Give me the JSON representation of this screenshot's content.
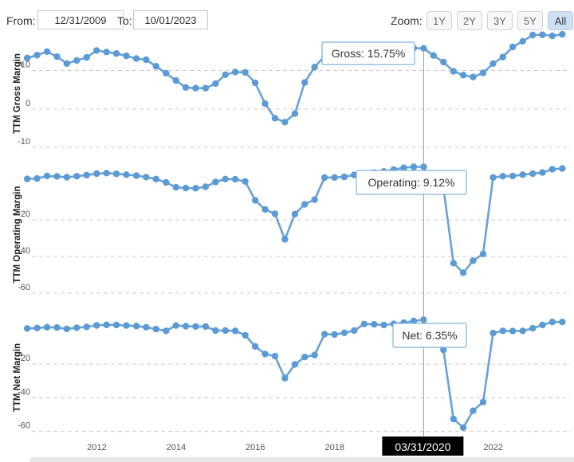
{
  "toolbar": {
    "from_label": "From:",
    "from_value": "12/31/2009",
    "to_label": "To:",
    "to_value": "10/01/2023",
    "zoom_label": "Zoom:",
    "zoom_buttons": [
      "1Y",
      "2Y",
      "3Y",
      "5Y",
      "All"
    ],
    "active_zoom": "All"
  },
  "colors": {
    "line": "#5b9bd5",
    "line_stroke": "#6aa1d6",
    "grid": "#cccccc",
    "crosshair": "#999999",
    "xhair_label_bg": "#000000"
  },
  "crosshair": {
    "date_label": "03/31/2020"
  },
  "chart_data": [
    {
      "type": "line",
      "ylabel": "TTM Gross Margin",
      "yticks": [
        10,
        0,
        -10
      ],
      "ylim": [
        -11,
        19
      ],
      "tooltip": {
        "text": "Gross: 15.75%"
      },
      "series": [
        {
          "x": [
            "2010-03-31",
            "2010-06-30",
            "2010-09-30",
            "2010-12-31",
            "2011-03-31",
            "2011-06-30",
            "2011-09-30",
            "2011-12-31",
            "2012-03-31",
            "2012-06-30",
            "2012-09-30",
            "2012-12-31",
            "2013-03-31",
            "2013-06-30",
            "2013-09-30",
            "2013-12-31",
            "2014-03-31",
            "2014-06-30",
            "2014-09-30",
            "2014-12-31",
            "2015-03-31",
            "2015-06-30",
            "2015-09-30",
            "2015-12-31",
            "2016-03-31",
            "2016-06-30",
            "2016-09-30",
            "2016-12-31",
            "2017-03-31",
            "2017-06-30",
            "2017-09-30",
            "2017-12-31",
            "2018-03-31",
            "2018-06-30",
            "2018-09-30",
            "2018-12-31",
            "2019-03-31",
            "2019-06-30",
            "2019-09-30",
            "2019-12-31",
            "2020-03-31",
            "2020-06-30",
            "2020-09-30",
            "2020-12-31",
            "2021-03-31",
            "2021-06-30",
            "2021-09-30",
            "2021-12-31",
            "2022-03-31",
            "2022-06-30",
            "2022-09-30",
            "2022-12-31",
            "2023-03-31",
            "2023-06-30",
            "2023-09-30"
          ],
          "values": [
            13.2,
            14.0,
            14.9,
            13.6,
            11.8,
            12.6,
            13.4,
            15.2,
            14.8,
            14.4,
            13.8,
            13.1,
            12.8,
            11.1,
            9.3,
            7.4,
            5.6,
            5.4,
            5.4,
            6.6,
            8.9,
            9.6,
            9.5,
            6.8,
            1.4,
            -2.4,
            -3.4,
            -1.2,
            6.9,
            10.9,
            13.7,
            14.6,
            15.2,
            15.6,
            15.8,
            15.8,
            15.9,
            15.8,
            15.8,
            15.8,
            15.75,
            13.9,
            12.2,
            9.8,
            8.8,
            8.3,
            9.4,
            11.8,
            13.5,
            16.1,
            17.6,
            19.2,
            19.3,
            19.0,
            19.4
          ]
        }
      ]
    },
    {
      "type": "line",
      "ylabel": "TTM Operating Margin",
      "yticks": [
        -20,
        -40,
        -60
      ],
      "ylim": [
        -64,
        8
      ],
      "tooltip": {
        "text": "Operating: 9.12%"
      },
      "series": [
        {
          "x": [
            "2010-03-31",
            "2010-06-30",
            "2010-09-30",
            "2010-12-31",
            "2011-03-31",
            "2011-06-30",
            "2011-09-30",
            "2011-12-31",
            "2012-03-31",
            "2012-06-30",
            "2012-09-30",
            "2012-12-31",
            "2013-03-31",
            "2013-06-30",
            "2013-09-30",
            "2013-12-31",
            "2014-03-31",
            "2014-06-30",
            "2014-09-30",
            "2014-12-31",
            "2015-03-31",
            "2015-06-30",
            "2015-09-30",
            "2015-12-31",
            "2016-03-31",
            "2016-06-30",
            "2016-09-30",
            "2016-12-31",
            "2017-03-31",
            "2017-06-30",
            "2017-09-30",
            "2017-12-31",
            "2018-03-31",
            "2018-06-30",
            "2018-09-30",
            "2018-12-31",
            "2019-03-31",
            "2019-06-30",
            "2019-09-30",
            "2019-12-31",
            "2020-03-31",
            "2020-06-30",
            "2020-09-30",
            "2020-12-31",
            "2021-03-31",
            "2021-06-30",
            "2021-09-30",
            "2021-12-31",
            "2022-03-31",
            "2022-06-30",
            "2022-09-30",
            "2022-12-31",
            "2023-03-31",
            "2023-06-30",
            "2023-09-30"
          ],
          "values": [
            2.5,
            2.7,
            4.1,
            3.9,
            3.4,
            4.0,
            4.6,
            5.4,
            5.7,
            5.3,
            4.8,
            4.3,
            3.5,
            2.4,
            0.6,
            -2.1,
            -2.5,
            -2.6,
            -1.8,
            0.8,
            2.4,
            2.3,
            1.1,
            -9.2,
            -14.2,
            -16.6,
            -30.6,
            -16.8,
            -11.4,
            -8.9,
            3.2,
            3.3,
            3.6,
            4.7,
            5.5,
            6.0,
            6.6,
            7.6,
            8.6,
            9.1,
            9.12,
            -0.4,
            -2.5,
            -43.6,
            -48.9,
            -42.3,
            -38.6,
            3.3,
            4.0,
            4.1,
            4.8,
            5.4,
            6.0,
            7.8,
            8.2
          ]
        }
      ]
    },
    {
      "type": "line",
      "ylabel": "TTM Net Margin",
      "yticks": [
        -20,
        -40,
        -60
      ],
      "ylim": [
        -63,
        7
      ],
      "tooltip": {
        "text": "Net: 6.35%"
      },
      "series": [
        {
          "x": [
            "2010-03-31",
            "2010-06-30",
            "2010-09-30",
            "2010-12-31",
            "2011-03-31",
            "2011-06-30",
            "2011-09-30",
            "2011-12-31",
            "2012-03-31",
            "2012-06-30",
            "2012-09-30",
            "2012-12-31",
            "2013-03-31",
            "2013-06-30",
            "2013-09-30",
            "2013-12-31",
            "2014-03-31",
            "2014-06-30",
            "2014-09-30",
            "2014-12-31",
            "2015-03-31",
            "2015-06-30",
            "2015-09-30",
            "2015-12-31",
            "2016-03-31",
            "2016-06-30",
            "2016-09-30",
            "2016-12-31",
            "2017-03-31",
            "2017-06-30",
            "2017-09-30",
            "2017-12-31",
            "2018-03-31",
            "2018-06-30",
            "2018-09-30",
            "2018-12-31",
            "2019-03-31",
            "2019-06-30",
            "2019-09-30",
            "2019-12-31",
            "2020-03-31",
            "2020-06-30",
            "2020-09-30",
            "2020-12-31",
            "2021-03-31",
            "2021-06-30",
            "2021-09-30",
            "2021-12-31",
            "2022-03-31",
            "2022-06-30",
            "2022-09-30",
            "2022-12-31",
            "2023-03-31",
            "2023-06-30",
            "2023-09-30"
          ],
          "values": [
            1.2,
            1.4,
            1.9,
            1.7,
            0.9,
            1.6,
            2.1,
            3.0,
            3.3,
            3.2,
            2.9,
            2.6,
            1.9,
            0.8,
            -0.3,
            2.9,
            2.5,
            2.3,
            2.3,
            -0.1,
            -0.1,
            -0.3,
            -2.9,
            -9.5,
            -14.0,
            -15.3,
            -28.4,
            -20.2,
            -15.8,
            -14.6,
            -2.2,
            -2.4,
            -1.4,
            -0.1,
            3.8,
            3.6,
            3.2,
            3.9,
            4.6,
            5.6,
            6.35,
            -5.4,
            -11.6,
            -52.6,
            -57.7,
            -47.7,
            -42.5,
            -1.6,
            -0.3,
            -0.4,
            -0.3,
            1.3,
            3.2,
            5.0,
            5.0
          ]
        }
      ]
    }
  ],
  "x_axis": {
    "tick_labels": [
      "2012",
      "2014",
      "2016",
      "2018",
      "2022"
    ]
  }
}
